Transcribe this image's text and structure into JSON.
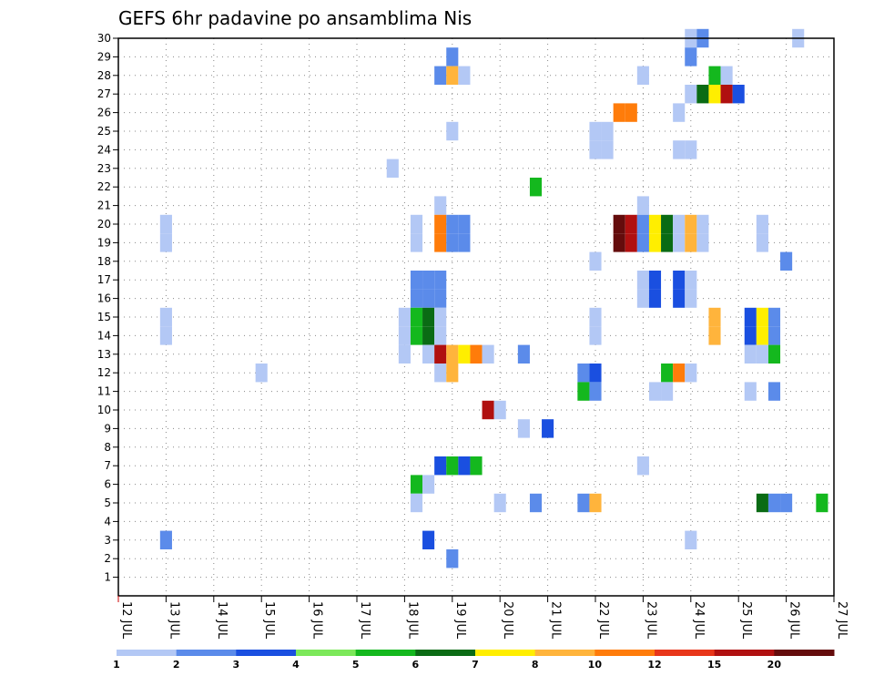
{
  "chart_data": {
    "type": "heatmap",
    "title": "GEFS 6hr padavine po ansamblima Nis",
    "xlabel": "",
    "ylabel": "",
    "x_ticks": [
      "12 JUL",
      "13 JUL",
      "14 JUL",
      "15 JUL",
      "16 JUL",
      "17 JUL",
      "18 JUL",
      "19 JUL",
      "20 JUL",
      "21 JUL",
      "22 JUL",
      "23 JUL",
      "24 JUL",
      "25 JUL",
      "26 JUL",
      "27 JUL"
    ],
    "x_range_days": [
      12,
      27
    ],
    "y_ticks": [
      "1",
      "2",
      "3",
      "4",
      "5",
      "6",
      "7",
      "8",
      "9",
      "10",
      "11",
      "12",
      "13",
      "14",
      "15",
      "16",
      "17",
      "18",
      "19",
      "20",
      "21",
      "22",
      "23",
      "24",
      "25",
      "26",
      "27",
      "28",
      "29",
      "30"
    ],
    "y_range": [
      0,
      30
    ],
    "grid": true,
    "legend": {
      "placement": "bottom",
      "labels": [
        "1",
        "2",
        "3",
        "4",
        "5",
        "6",
        "7",
        "8",
        "10",
        "12",
        "15",
        "20"
      ],
      "colors": [
        "#b3c8f5",
        "#5b8bea",
        "#1a4fe0",
        "#7ce85a",
        "#14b81e",
        "#0a6b14",
        "#ffee00",
        "#ffb43c",
        "#ff7c0a",
        "#e8361a",
        "#b01010",
        "#640c0c"
      ]
    },
    "cells": [
      {
        "day": 24.0,
        "member": 30,
        "value": 1
      },
      {
        "day": 24.25,
        "member": 30,
        "value": 2
      },
      {
        "day": 26.25,
        "member": 30,
        "value": 1
      },
      {
        "day": 19.0,
        "member": 29,
        "value": 2
      },
      {
        "day": 24.0,
        "member": 29,
        "value": 2
      },
      {
        "day": 18.75,
        "member": 28,
        "value": 2
      },
      {
        "day": 19.0,
        "member": 28,
        "value": 8
      },
      {
        "day": 19.25,
        "member": 28,
        "value": 1
      },
      {
        "day": 23.0,
        "member": 28,
        "value": 1
      },
      {
        "day": 24.5,
        "member": 28,
        "value": 5
      },
      {
        "day": 24.75,
        "member": 28,
        "value": 1
      },
      {
        "day": 24.0,
        "member": 27,
        "value": 1
      },
      {
        "day": 24.25,
        "member": 27,
        "value": 6
      },
      {
        "day": 24.5,
        "member": 27,
        "value": 7
      },
      {
        "day": 24.75,
        "member": 27,
        "value": 15
      },
      {
        "day": 25.0,
        "member": 27,
        "value": 3
      },
      {
        "day": 22.5,
        "member": 26,
        "value": 10
      },
      {
        "day": 22.75,
        "member": 26,
        "value": 10
      },
      {
        "day": 23.75,
        "member": 26,
        "value": 1
      },
      {
        "day": 19.0,
        "member": 25,
        "value": 1
      },
      {
        "day": 22.0,
        "member": 25,
        "value": 1
      },
      {
        "day": 22.25,
        "member": 25,
        "value": 1
      },
      {
        "day": 22.0,
        "member": 24,
        "value": 1
      },
      {
        "day": 22.25,
        "member": 24,
        "value": 1
      },
      {
        "day": 23.75,
        "member": 24,
        "value": 1
      },
      {
        "day": 24.0,
        "member": 24,
        "value": 1
      },
      {
        "day": 17.75,
        "member": 23,
        "value": 1
      },
      {
        "day": 20.75,
        "member": 22,
        "value": 5
      },
      {
        "day": 18.75,
        "member": 21,
        "value": 1
      },
      {
        "day": 23.0,
        "member": 21,
        "value": 1
      },
      {
        "day": 13.0,
        "member": 20,
        "value": 1
      },
      {
        "day": 18.25,
        "member": 20,
        "value": 1
      },
      {
        "day": 18.75,
        "member": 20,
        "value": 10
      },
      {
        "day": 19.0,
        "member": 20,
        "value": 2
      },
      {
        "day": 19.25,
        "member": 20,
        "value": 2
      },
      {
        "day": 22.5,
        "member": 20,
        "value": 20
      },
      {
        "day": 22.75,
        "member": 20,
        "value": 15
      },
      {
        "day": 23.0,
        "member": 20,
        "value": 2
      },
      {
        "day": 23.25,
        "member": 20,
        "value": 7
      },
      {
        "day": 23.5,
        "member": 20,
        "value": 6
      },
      {
        "day": 23.75,
        "member": 20,
        "value": 1
      },
      {
        "day": 24.0,
        "member": 20,
        "value": 8
      },
      {
        "day": 24.25,
        "member": 20,
        "value": 1
      },
      {
        "day": 25.5,
        "member": 20,
        "value": 1
      },
      {
        "day": 13.0,
        "member": 19,
        "value": 1
      },
      {
        "day": 18.25,
        "member": 19,
        "value": 1
      },
      {
        "day": 18.75,
        "member": 19,
        "value": 10
      },
      {
        "day": 19.0,
        "member": 19,
        "value": 2
      },
      {
        "day": 19.25,
        "member": 19,
        "value": 2
      },
      {
        "day": 22.5,
        "member": 19,
        "value": 20
      },
      {
        "day": 22.75,
        "member": 19,
        "value": 15
      },
      {
        "day": 23.0,
        "member": 19,
        "value": 2
      },
      {
        "day": 23.25,
        "member": 19,
        "value": 7
      },
      {
        "day": 23.5,
        "member": 19,
        "value": 6
      },
      {
        "day": 23.75,
        "member": 19,
        "value": 1
      },
      {
        "day": 24.0,
        "member": 19,
        "value": 8
      },
      {
        "day": 24.25,
        "member": 19,
        "value": 1
      },
      {
        "day": 25.5,
        "member": 19,
        "value": 1
      },
      {
        "day": 22.0,
        "member": 18,
        "value": 1
      },
      {
        "day": 26.0,
        "member": 18,
        "value": 2
      },
      {
        "day": 18.25,
        "member": 17,
        "value": 2
      },
      {
        "day": 18.5,
        "member": 17,
        "value": 2
      },
      {
        "day": 18.75,
        "member": 17,
        "value": 2
      },
      {
        "day": 23.0,
        "member": 17,
        "value": 1
      },
      {
        "day": 23.25,
        "member": 17,
        "value": 3
      },
      {
        "day": 23.75,
        "member": 17,
        "value": 3
      },
      {
        "day": 24.0,
        "member": 17,
        "value": 1
      },
      {
        "day": 18.25,
        "member": 16,
        "value": 2
      },
      {
        "day": 18.5,
        "member": 16,
        "value": 2
      },
      {
        "day": 18.75,
        "member": 16,
        "value": 2
      },
      {
        "day": 23.0,
        "member": 16,
        "value": 1
      },
      {
        "day": 23.25,
        "member": 16,
        "value": 3
      },
      {
        "day": 23.75,
        "member": 16,
        "value": 3
      },
      {
        "day": 24.0,
        "member": 16,
        "value": 1
      },
      {
        "day": 13.0,
        "member": 15,
        "value": 1
      },
      {
        "day": 18.0,
        "member": 15,
        "value": 1
      },
      {
        "day": 18.25,
        "member": 15,
        "value": 5
      },
      {
        "day": 18.5,
        "member": 15,
        "value": 6
      },
      {
        "day": 18.75,
        "member": 15,
        "value": 1
      },
      {
        "day": 22.0,
        "member": 15,
        "value": 1
      },
      {
        "day": 24.5,
        "member": 15,
        "value": 8
      },
      {
        "day": 25.25,
        "member": 15,
        "value": 3
      },
      {
        "day": 25.5,
        "member": 15,
        "value": 7.5
      },
      {
        "day": 25.75,
        "member": 15,
        "value": 2
      },
      {
        "day": 13.0,
        "member": 14,
        "value": 1
      },
      {
        "day": 18.0,
        "member": 14,
        "value": 1
      },
      {
        "day": 18.25,
        "member": 14,
        "value": 5
      },
      {
        "day": 18.5,
        "member": 14,
        "value": 6
      },
      {
        "day": 18.75,
        "member": 14,
        "value": 1
      },
      {
        "day": 22.0,
        "member": 14,
        "value": 1
      },
      {
        "day": 24.5,
        "member": 14,
        "value": 8
      },
      {
        "day": 25.25,
        "member": 14,
        "value": 3
      },
      {
        "day": 25.5,
        "member": 14,
        "value": 7.5
      },
      {
        "day": 25.75,
        "member": 14,
        "value": 2
      },
      {
        "day": 18.0,
        "member": 13,
        "value": 1
      },
      {
        "day": 18.5,
        "member": 13,
        "value": 1
      },
      {
        "day": 18.75,
        "member": 13,
        "value": 15
      },
      {
        "day": 19.0,
        "member": 13,
        "value": 8
      },
      {
        "day": 19.25,
        "member": 13,
        "value": 7
      },
      {
        "day": 19.5,
        "member": 13,
        "value": 10
      },
      {
        "day": 19.75,
        "member": 13,
        "value": 1
      },
      {
        "day": 20.5,
        "member": 13,
        "value": 2
      },
      {
        "day": 25.25,
        "member": 13,
        "value": 1
      },
      {
        "day": 25.5,
        "member": 13,
        "value": 1
      },
      {
        "day": 25.75,
        "member": 13,
        "value": 5
      },
      {
        "day": 15.0,
        "member": 12,
        "value": 1
      },
      {
        "day": 18.75,
        "member": 12,
        "value": 1
      },
      {
        "day": 19.0,
        "member": 12,
        "value": 8
      },
      {
        "day": 21.75,
        "member": 12,
        "value": 2
      },
      {
        "day": 22.0,
        "member": 12,
        "value": 3
      },
      {
        "day": 23.5,
        "member": 12,
        "value": 5
      },
      {
        "day": 23.75,
        "member": 12,
        "value": 10
      },
      {
        "day": 24.0,
        "member": 12,
        "value": 1
      },
      {
        "day": 21.75,
        "member": 11,
        "value": 5
      },
      {
        "day": 22.0,
        "member": 11,
        "value": 2
      },
      {
        "day": 23.25,
        "member": 11,
        "value": 1
      },
      {
        "day": 23.5,
        "member": 11,
        "value": 1
      },
      {
        "day": 25.25,
        "member": 11,
        "value": 1
      },
      {
        "day": 25.75,
        "member": 11,
        "value": 2
      },
      {
        "day": 19.75,
        "member": 10,
        "value": 15
      },
      {
        "day": 20.0,
        "member": 10,
        "value": 1
      },
      {
        "day": 20.5,
        "member": 9,
        "value": 1
      },
      {
        "day": 21.0,
        "member": 9,
        "value": 3
      },
      {
        "day": 18.75,
        "member": 7,
        "value": 3
      },
      {
        "day": 19.0,
        "member": 7,
        "value": 5
      },
      {
        "day": 19.25,
        "member": 7,
        "value": 3
      },
      {
        "day": 19.5,
        "member": 7,
        "value": 5
      },
      {
        "day": 23.0,
        "member": 7,
        "value": 1
      },
      {
        "day": 18.25,
        "member": 6,
        "value": 5
      },
      {
        "day": 18.5,
        "member": 6,
        "value": 1
      },
      {
        "day": 18.25,
        "member": 5,
        "value": 1
      },
      {
        "day": 20.0,
        "member": 5,
        "value": 1
      },
      {
        "day": 20.75,
        "member": 5,
        "value": 2
      },
      {
        "day": 21.75,
        "member": 5,
        "value": 2
      },
      {
        "day": 22.0,
        "member": 5,
        "value": 8
      },
      {
        "day": 25.5,
        "member": 5,
        "value": 6
      },
      {
        "day": 25.75,
        "member": 5,
        "value": 2
      },
      {
        "day": 26.0,
        "member": 5,
        "value": 2
      },
      {
        "day": 26.75,
        "member": 5,
        "value": 5
      },
      {
        "day": 13.0,
        "member": 3,
        "value": 2
      },
      {
        "day": 18.5,
        "member": 3,
        "value": 3
      },
      {
        "day": 24.0,
        "member": 3,
        "value": 1
      },
      {
        "day": 19.0,
        "member": 2,
        "value": 2
      }
    ]
  }
}
